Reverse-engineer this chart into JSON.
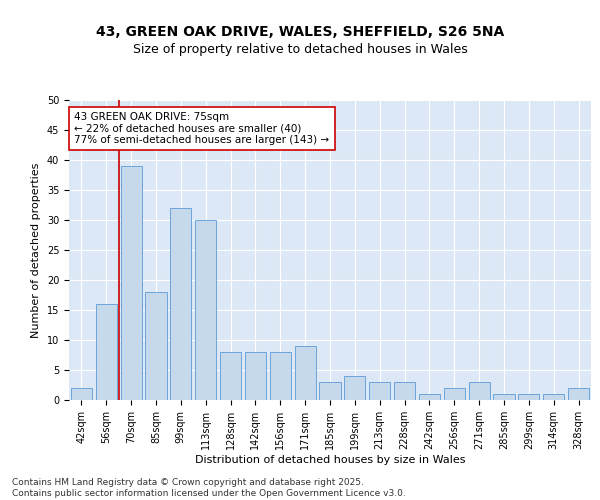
{
  "title_line1": "43, GREEN OAK DRIVE, WALES, SHEFFIELD, S26 5NA",
  "title_line2": "Size of property relative to detached houses in Wales",
  "xlabel": "Distribution of detached houses by size in Wales",
  "ylabel": "Number of detached properties",
  "categories": [
    "42sqm",
    "56sqm",
    "70sqm",
    "85sqm",
    "99sqm",
    "113sqm",
    "128sqm",
    "142sqm",
    "156sqm",
    "171sqm",
    "185sqm",
    "199sqm",
    "213sqm",
    "228sqm",
    "242sqm",
    "256sqm",
    "271sqm",
    "285sqm",
    "299sqm",
    "314sqm",
    "328sqm"
  ],
  "values": [
    2,
    16,
    39,
    18,
    32,
    30,
    8,
    8,
    8,
    9,
    3,
    4,
    3,
    3,
    1,
    2,
    3,
    1,
    1,
    1,
    2
  ],
  "bar_color": "#c5d8ec",
  "bar_edge_color": "#5b9bd5",
  "highlight_color": "#cc0000",
  "annotation_text": "43 GREEN OAK DRIVE: 75sqm\n← 22% of detached houses are smaller (40)\n77% of semi-detached houses are larger (143) →",
  "annotation_box_color": "#cc0000",
  "ylim": [
    0,
    50
  ],
  "yticks": [
    0,
    5,
    10,
    15,
    20,
    25,
    30,
    35,
    40,
    45,
    50
  ],
  "background_color": "#dce8f5",
  "grid_color": "#ffffff",
  "fig_background_color": "#ffffff",
  "footer_text": "Contains HM Land Registry data © Crown copyright and database right 2025.\nContains public sector information licensed under the Open Government Licence v3.0.",
  "title_fontsize": 10,
  "subtitle_fontsize": 9,
  "axis_label_fontsize": 8,
  "tick_fontsize": 7,
  "annotation_fontsize": 7.5,
  "footer_fontsize": 6.5
}
